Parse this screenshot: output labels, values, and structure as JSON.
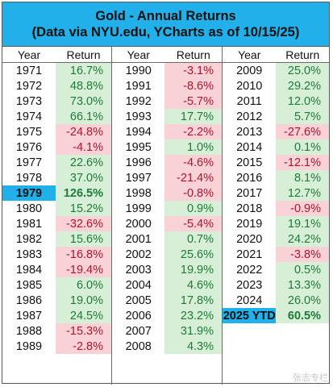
{
  "title": "Gold - Annual Returns",
  "subtitle": "(Data via NYU.edu, YCharts as of 10/15/25)",
  "headers": {
    "year": "Year",
    "return": "Return"
  },
  "watermark": "张志专栏",
  "colors": {
    "title_band": "#21b0ea",
    "positive_bg": "#d6efd6",
    "positive_text": "#1f7a3a",
    "negative_bg": "#f9d2d8",
    "negative_text": "#b0142a",
    "highlight": "#21b0ea"
  },
  "chart_data": {
    "type": "table",
    "title": "Gold - Annual Returns",
    "subtitle": "(Data via NYU.edu, YCharts as of 10/15/25)",
    "columns": [
      "Year",
      "Return"
    ],
    "unit": "%",
    "groups": [
      [
        {
          "year": "1971",
          "label": "16.7%",
          "value": 16.7
        },
        {
          "year": "1972",
          "label": "48.8%",
          "value": 48.8
        },
        {
          "year": "1973",
          "label": "73.0%",
          "value": 73.0
        },
        {
          "year": "1974",
          "label": "66.1%",
          "value": 66.1
        },
        {
          "year": "1975",
          "label": "-24.8%",
          "value": -24.8
        },
        {
          "year": "1976",
          "label": "-4.1%",
          "value": -4.1
        },
        {
          "year": "1977",
          "label": "22.6%",
          "value": 22.6
        },
        {
          "year": "1978",
          "label": "37.0%",
          "value": 37.0
        },
        {
          "year": "1979",
          "label": "126.5%",
          "value": 126.5,
          "highlight": true
        },
        {
          "year": "1980",
          "label": "15.2%",
          "value": 15.2
        },
        {
          "year": "1981",
          "label": "-32.6%",
          "value": -32.6
        },
        {
          "year": "1982",
          "label": "15.6%",
          "value": 15.6
        },
        {
          "year": "1983",
          "label": "-16.8%",
          "value": -16.8
        },
        {
          "year": "1984",
          "label": "-19.4%",
          "value": -19.4
        },
        {
          "year": "1985",
          "label": "6.0%",
          "value": 6.0
        },
        {
          "year": "1986",
          "label": "19.0%",
          "value": 19.0
        },
        {
          "year": "1987",
          "label": "24.5%",
          "value": 24.5
        },
        {
          "year": "1988",
          "label": "-15.3%",
          "value": -15.3
        },
        {
          "year": "1989",
          "label": "-2.8%",
          "value": -2.8
        }
      ],
      [
        {
          "year": "1990",
          "label": "-3.1%",
          "value": -3.1
        },
        {
          "year": "1991",
          "label": "-8.6%",
          "value": -8.6
        },
        {
          "year": "1992",
          "label": "-5.7%",
          "value": -5.7
        },
        {
          "year": "1993",
          "label": "17.7%",
          "value": 17.7
        },
        {
          "year": "1994",
          "label": "-2.2%",
          "value": -2.2
        },
        {
          "year": "1995",
          "label": "1.0%",
          "value": 1.0
        },
        {
          "year": "1996",
          "label": "-4.6%",
          "value": -4.6
        },
        {
          "year": "1997",
          "label": "-21.4%",
          "value": -21.4
        },
        {
          "year": "1998",
          "label": "-0.8%",
          "value": -0.8
        },
        {
          "year": "1999",
          "label": "0.9%",
          "value": 0.9
        },
        {
          "year": "2000",
          "label": "-5.4%",
          "value": -5.4
        },
        {
          "year": "2001",
          "label": "0.7%",
          "value": 0.7
        },
        {
          "year": "2002",
          "label": "25.6%",
          "value": 25.6
        },
        {
          "year": "2003",
          "label": "19.9%",
          "value": 19.9
        },
        {
          "year": "2004",
          "label": "4.6%",
          "value": 4.6
        },
        {
          "year": "2005",
          "label": "17.8%",
          "value": 17.8
        },
        {
          "year": "2006",
          "label": "23.2%",
          "value": 23.2
        },
        {
          "year": "2007",
          "label": "31.9%",
          "value": 31.9
        },
        {
          "year": "2008",
          "label": "4.3%",
          "value": 4.3
        }
      ],
      [
        {
          "year": "2009",
          "label": "25.0%",
          "value": 25.0
        },
        {
          "year": "2010",
          "label": "29.2%",
          "value": 29.2
        },
        {
          "year": "2011",
          "label": "12.0%",
          "value": 12.0
        },
        {
          "year": "2012",
          "label": "5.7%",
          "value": 5.7
        },
        {
          "year": "2013",
          "label": "-27.6%",
          "value": -27.6
        },
        {
          "year": "2014",
          "label": "0.1%",
          "value": 0.1
        },
        {
          "year": "2015",
          "label": "-12.1%",
          "value": -12.1
        },
        {
          "year": "2016",
          "label": "8.1%",
          "value": 8.1
        },
        {
          "year": "2017",
          "label": "12.7%",
          "value": 12.7
        },
        {
          "year": "2018",
          "label": "-0.9%",
          "value": -0.9
        },
        {
          "year": "2019",
          "label": "19.1%",
          "value": 19.1
        },
        {
          "year": "2020",
          "label": "24.2%",
          "value": 24.2
        },
        {
          "year": "2021",
          "label": "-3.8%",
          "value": -3.8
        },
        {
          "year": "2022",
          "label": "0.5%",
          "value": 0.5
        },
        {
          "year": "2023",
          "label": "13.3%",
          "value": 13.3
        },
        {
          "year": "2024",
          "label": "26.0%",
          "value": 26.0
        },
        {
          "year": "2025 YTD",
          "label": "60.5%",
          "value": 60.5,
          "highlight": true
        }
      ]
    ]
  }
}
